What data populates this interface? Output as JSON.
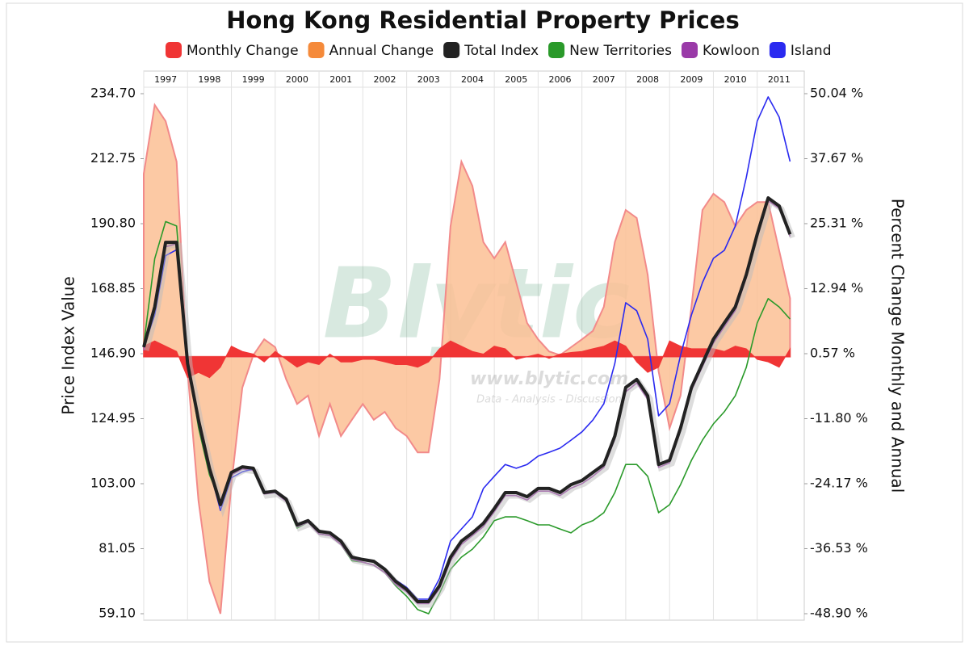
{
  "chart_data": {
    "type": "line",
    "title": "Hong Kong Residential Property Prices",
    "ylabel": "Price Index Value",
    "y2label": "Percent Change Monthly and Annual",
    "watermark": [
      "Blytic",
      "www.blytic.com",
      "Data - Analysis - Discussion"
    ],
    "x": [
      1997,
      1997.25,
      1997.5,
      1997.75,
      1998,
      1998.25,
      1998.5,
      1998.75,
      1999,
      1999.25,
      1999.5,
      1999.75,
      2000,
      2000.25,
      2000.5,
      2000.75,
      2001,
      2001.25,
      2001.5,
      2001.75,
      2002,
      2002.25,
      2002.5,
      2002.75,
      2003,
      2003.25,
      2003.5,
      2003.75,
      2004,
      2004.25,
      2004.5,
      2004.75,
      2005,
      2005.25,
      2005.5,
      2005.75,
      2006,
      2006.25,
      2006.5,
      2006.75,
      2007,
      2007.25,
      2007.5,
      2007.75,
      2008,
      2008.25,
      2008.5,
      2008.75,
      2009,
      2009.25,
      2009.5,
      2009.75,
      2010,
      2010.25,
      2010.5,
      2010.75,
      2011,
      2011.25,
      2011.5,
      2011.75
    ],
    "xlim": [
      1997,
      2012
    ],
    "xticks": [
      1997,
      1998,
      1999,
      2000,
      2001,
      2002,
      2003,
      2004,
      2005,
      2006,
      2007,
      2008,
      2009,
      2010,
      2011
    ],
    "xgrid": true,
    "ylim": [
      59.1,
      234.7
    ],
    "yticks": [
      {
        "value": 59.1,
        "label": "59.10"
      },
      {
        "value": 81.05,
        "label": "81.05"
      },
      {
        "value": 103,
        "label": "103.00"
      },
      {
        "value": 124.95,
        "label": "124.95"
      },
      {
        "value": 146.9,
        "label": "146.90"
      },
      {
        "value": 168.85,
        "label": "168.85"
      },
      {
        "value": 190.8,
        "label": "190.80"
      },
      {
        "value": 212.75,
        "label": "212.75"
      },
      {
        "value": 234.7,
        "label": "234.70"
      }
    ],
    "y2lim": [
      -48.9,
      50.04
    ],
    "y2ticks": [
      {
        "value": -48.9,
        "label": "-48.90 %"
      },
      {
        "value": -36.53,
        "label": "-36.53 %"
      },
      {
        "value": -24.17,
        "label": "-24.17 %"
      },
      {
        "value": -11.8,
        "label": "-11.80 %"
      },
      {
        "value": 0.57,
        "label": "0.57 %"
      },
      {
        "value": 12.94,
        "label": "12.94 %"
      },
      {
        "value": 25.31,
        "label": "25.31 %"
      },
      {
        "value": 37.67,
        "label": "37.67 %"
      },
      {
        "value": 50.04,
        "label": "50.04 %"
      }
    ],
    "series": [
      {
        "name": "Monthly Change",
        "color": "#f03535",
        "axis": "y2",
        "type": "area",
        "values": [
          2,
          3,
          2,
          1,
          -4,
          -3,
          -4,
          -2,
          2,
          1,
          0.5,
          -1,
          1,
          -0.5,
          -2,
          -1,
          -1.5,
          0.5,
          -1,
          -1,
          -0.5,
          -0.5,
          -1,
          -1.5,
          -1.5,
          -2,
          -1,
          1.5,
          3,
          2,
          1,
          0.5,
          2,
          1.5,
          -0.5,
          0,
          0.5,
          -0.3,
          0.5,
          0.8,
          1,
          1.5,
          2,
          3,
          2,
          -1,
          -3,
          -2,
          3,
          2,
          1.5,
          1.5,
          1.5,
          1,
          2,
          1.5,
          -0.5,
          -1,
          -2,
          1.5
        ]
      },
      {
        "name": "Annual Change",
        "color": "#f58a3a",
        "axis": "y2",
        "type": "area",
        "values": [
          34.8,
          47.9,
          44.8,
          37.1,
          -2.8,
          -27.4,
          -42.8,
          -48.9,
          -24.3,
          -5.9,
          0.3,
          3.3,
          1.8,
          -4.3,
          -9,
          -7.4,
          -15.1,
          -9,
          -15.1,
          -12,
          -9,
          -12,
          -10.5,
          -13.6,
          -15.1,
          -18.2,
          -18.2,
          -4.3,
          24.8,
          37.1,
          32.5,
          21.8,
          18.7,
          21.8,
          14.1,
          6.4,
          3.3,
          1,
          0.3,
          1.8,
          3.3,
          4.9,
          9.5,
          21.8,
          27.9,
          26.4,
          15.6,
          -2.8,
          -13.6,
          -7.4,
          9.5,
          27.9,
          31,
          29.4,
          24.8,
          27.9,
          29.4,
          29.4,
          20.2,
          11.1
        ]
      },
      {
        "name": "Total Index",
        "color": "#222222",
        "type": "line",
        "values": [
          149.1,
          162.7,
          184.5,
          184.5,
          143.6,
          124.5,
          108.2,
          95.9,
          106.8,
          108.7,
          108.2,
          100,
          100.5,
          97.8,
          89.1,
          90.5,
          86.9,
          86.4,
          83.6,
          78.2,
          77.4,
          76.8,
          74.1,
          70,
          67.3,
          63.2,
          63.2,
          68.6,
          78.2,
          83.6,
          86.4,
          89.6,
          94.6,
          100,
          100,
          98.6,
          101.4,
          101.4,
          100,
          102.7,
          104.1,
          106.8,
          109.5,
          119.1,
          135.5,
          138.2,
          132.7,
          109.5,
          110.9,
          121.8,
          135.5,
          143.6,
          151.8,
          157.3,
          162.7,
          173.6,
          187.2,
          199.5,
          196.8,
          187.2
        ]
      },
      {
        "name": "New Territories",
        "color": "#2a9a2a",
        "type": "line",
        "values": [
          150,
          179,
          191.5,
          190,
          145,
          122,
          106,
          97,
          106,
          108,
          108.5,
          100,
          100.5,
          97,
          88,
          90,
          86,
          85.5,
          82.5,
          77,
          76.5,
          75.5,
          73,
          68.5,
          65,
          60.5,
          59.1,
          66,
          74.1,
          78.2,
          80.9,
          85,
          90.5,
          91.8,
          91.8,
          90.5,
          89.1,
          89.1,
          87.7,
          86.4,
          89.1,
          90.5,
          93.2,
          100,
          109.5,
          109.5,
          105.5,
          93.2,
          95.9,
          102.7,
          110.9,
          117.7,
          123.2,
          127.3,
          132.7,
          142.3,
          157.3,
          165.5,
          162.7,
          158.6
        ]
      },
      {
        "name": "Kowloon",
        "color": "#9a3aa8",
        "type": "line",
        "values": [
          148,
          163,
          183,
          184,
          143,
          124,
          107,
          95.5,
          106,
          108,
          107.5,
          99.5,
          100,
          97,
          88.5,
          90,
          86,
          85.5,
          82.5,
          77.5,
          76.5,
          75.5,
          73,
          69,
          66.5,
          62.5,
          62.5,
          67.5,
          77,
          82.5,
          85.5,
          88.5,
          93.5,
          99,
          99,
          97.5,
          100.5,
          100.5,
          99,
          101.5,
          103,
          105.5,
          108.5,
          118,
          134,
          137,
          131.5,
          108.5,
          110,
          121,
          134.5,
          142.5,
          150.5,
          156,
          161.5,
          172.5,
          186,
          198.5,
          196,
          186.5
        ]
      },
      {
        "name": "Island",
        "color": "#2a2af0",
        "type": "line",
        "values": [
          149,
          160,
          180,
          182,
          142,
          125,
          108,
          94,
          105,
          107,
          108,
          100.5,
          100,
          98,
          89.5,
          90.5,
          87,
          86.5,
          84,
          78.5,
          77.5,
          77,
          74.5,
          70.5,
          68,
          64,
          64,
          71,
          83.6,
          87.7,
          91.8,
          101.4,
          105.5,
          109.5,
          108.2,
          109.5,
          112.3,
          113.6,
          115,
          117.7,
          120.5,
          124.5,
          130,
          143.6,
          164.1,
          161.4,
          151.8,
          125.9,
          130,
          146.4,
          160,
          170.9,
          179.1,
          181.8,
          190,
          206.4,
          225.4,
          233.6,
          226.8,
          211.8
        ]
      }
    ]
  }
}
